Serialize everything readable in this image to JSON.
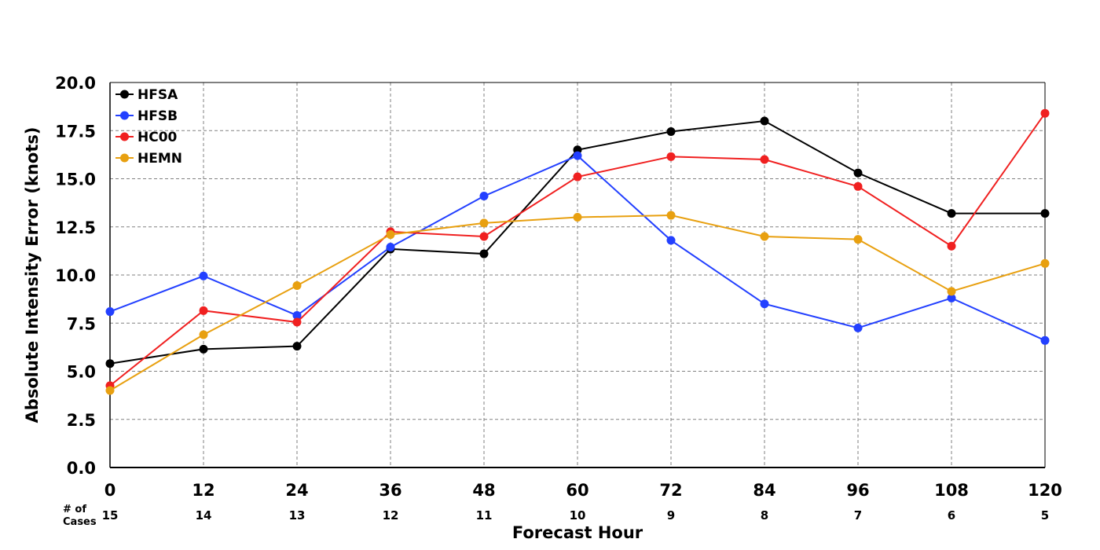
{
  "chart_data": {
    "type": "line",
    "title": "",
    "xlabel": "Forecast Hour",
    "ylabel": "Absolute Intensity Error (knots)",
    "x": [
      0,
      12,
      24,
      36,
      48,
      60,
      72,
      84,
      96,
      108,
      120
    ],
    "x_tick_labels": [
      "0",
      "12",
      "24",
      "36",
      "48",
      "60",
      "72",
      "84",
      "96",
      "108",
      "120"
    ],
    "xlim": [
      0,
      120
    ],
    "ylim": [
      0,
      20
    ],
    "y_ticks": [
      0,
      2.5,
      5,
      7.5,
      10,
      12.5,
      15,
      17.5,
      20
    ],
    "y_tick_labels": [
      "0.0",
      "2.5",
      "5.0",
      "7.5",
      "10.0",
      "12.5",
      "15.0",
      "17.5",
      "20.0"
    ],
    "grid": true,
    "legend_position": "top-left",
    "cases_label": [
      "# of",
      "Cases"
    ],
    "cases": [
      "15",
      "14",
      "13",
      "12",
      "11",
      "10",
      "9",
      "8",
      "7",
      "6",
      "5"
    ],
    "series": [
      {
        "name": "HFSA",
        "color": "#000000",
        "values": [
          5.4,
          6.15,
          6.3,
          11.35,
          11.1,
          16.5,
          17.45,
          18.0,
          15.3,
          13.2,
          13.2
        ]
      },
      {
        "name": "HFSB",
        "color": "#2340ff",
        "values": [
          8.1,
          9.95,
          7.9,
          11.45,
          14.1,
          16.2,
          11.8,
          8.5,
          7.25,
          8.8,
          6.6
        ]
      },
      {
        "name": "HC00",
        "color": "#f02020",
        "values": [
          4.25,
          8.15,
          7.55,
          12.25,
          12.0,
          15.1,
          16.15,
          16.0,
          14.6,
          11.5,
          18.4
        ]
      },
      {
        "name": "HEMN",
        "color": "#e8a010",
        "values": [
          4.0,
          6.9,
          9.45,
          12.1,
          12.7,
          13.0,
          13.1,
          12.0,
          11.85,
          9.15,
          10.6
        ]
      }
    ]
  }
}
